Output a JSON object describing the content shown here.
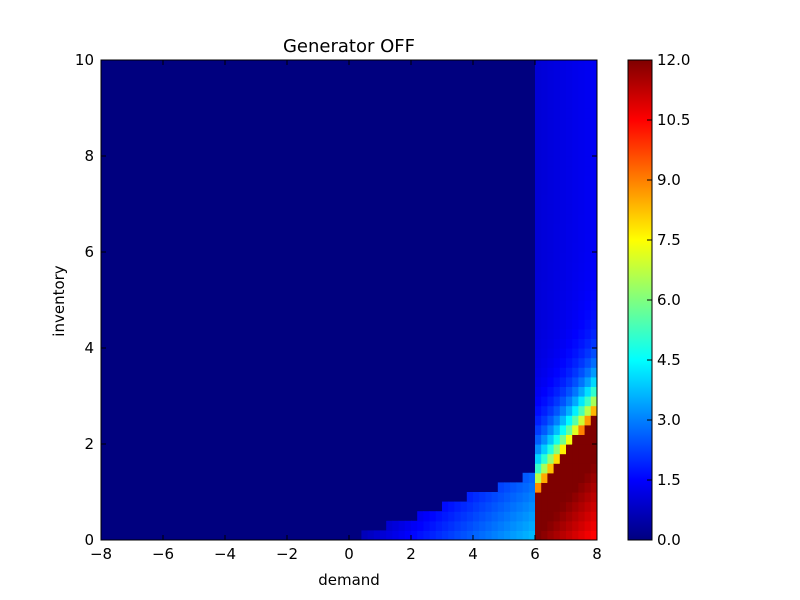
{
  "chart_data": {
    "type": "heatmap",
    "title": "Generator OFF",
    "xlabel": "demand",
    "ylabel": "inventory",
    "xlim": [
      -8,
      8
    ],
    "ylim": [
      0,
      10
    ],
    "x_ticks": [
      -8,
      -6,
      -4,
      -2,
      0,
      2,
      4,
      6,
      8
    ],
    "x_tick_labels": [
      "−8",
      "−6",
      "−4",
      "−2",
      "0",
      "2",
      "4",
      "6",
      "8"
    ],
    "y_ticks": [
      0,
      2,
      4,
      6,
      8,
      10
    ],
    "y_tick_labels": [
      "0",
      "2",
      "4",
      "6",
      "8",
      "10"
    ],
    "colorbar": {
      "min": 0.0,
      "max": 12.0,
      "colormap": "jet",
      "ticks": [
        0.0,
        1.5,
        3.0,
        4.5,
        6.0,
        7.5,
        9.0,
        10.5,
        12.0
      ],
      "tick_labels": [
        "0.0",
        "1.5",
        "3.0",
        "4.5",
        "6.0",
        "7.5",
        "9.0",
        "10.5",
        "12.0"
      ]
    },
    "regions": [
      {
        "description": "demand below 6, above the low band",
        "value": 0.0
      },
      {
        "description": "demand 6 to 8, inventory 4 to 10 (upper right strip)",
        "value_range": [
          1.0,
          1.8
        ]
      },
      {
        "description": "demand 0 to 6, inventory 0 to 1.4 (lower wedge)",
        "value_range": [
          0.5,
          4.0
        ]
      },
      {
        "description": "demand 6 to 8, inventory 0 to 4 (diagonal ridge)",
        "value_range": [
          2.0,
          12.0
        ]
      }
    ]
  }
}
